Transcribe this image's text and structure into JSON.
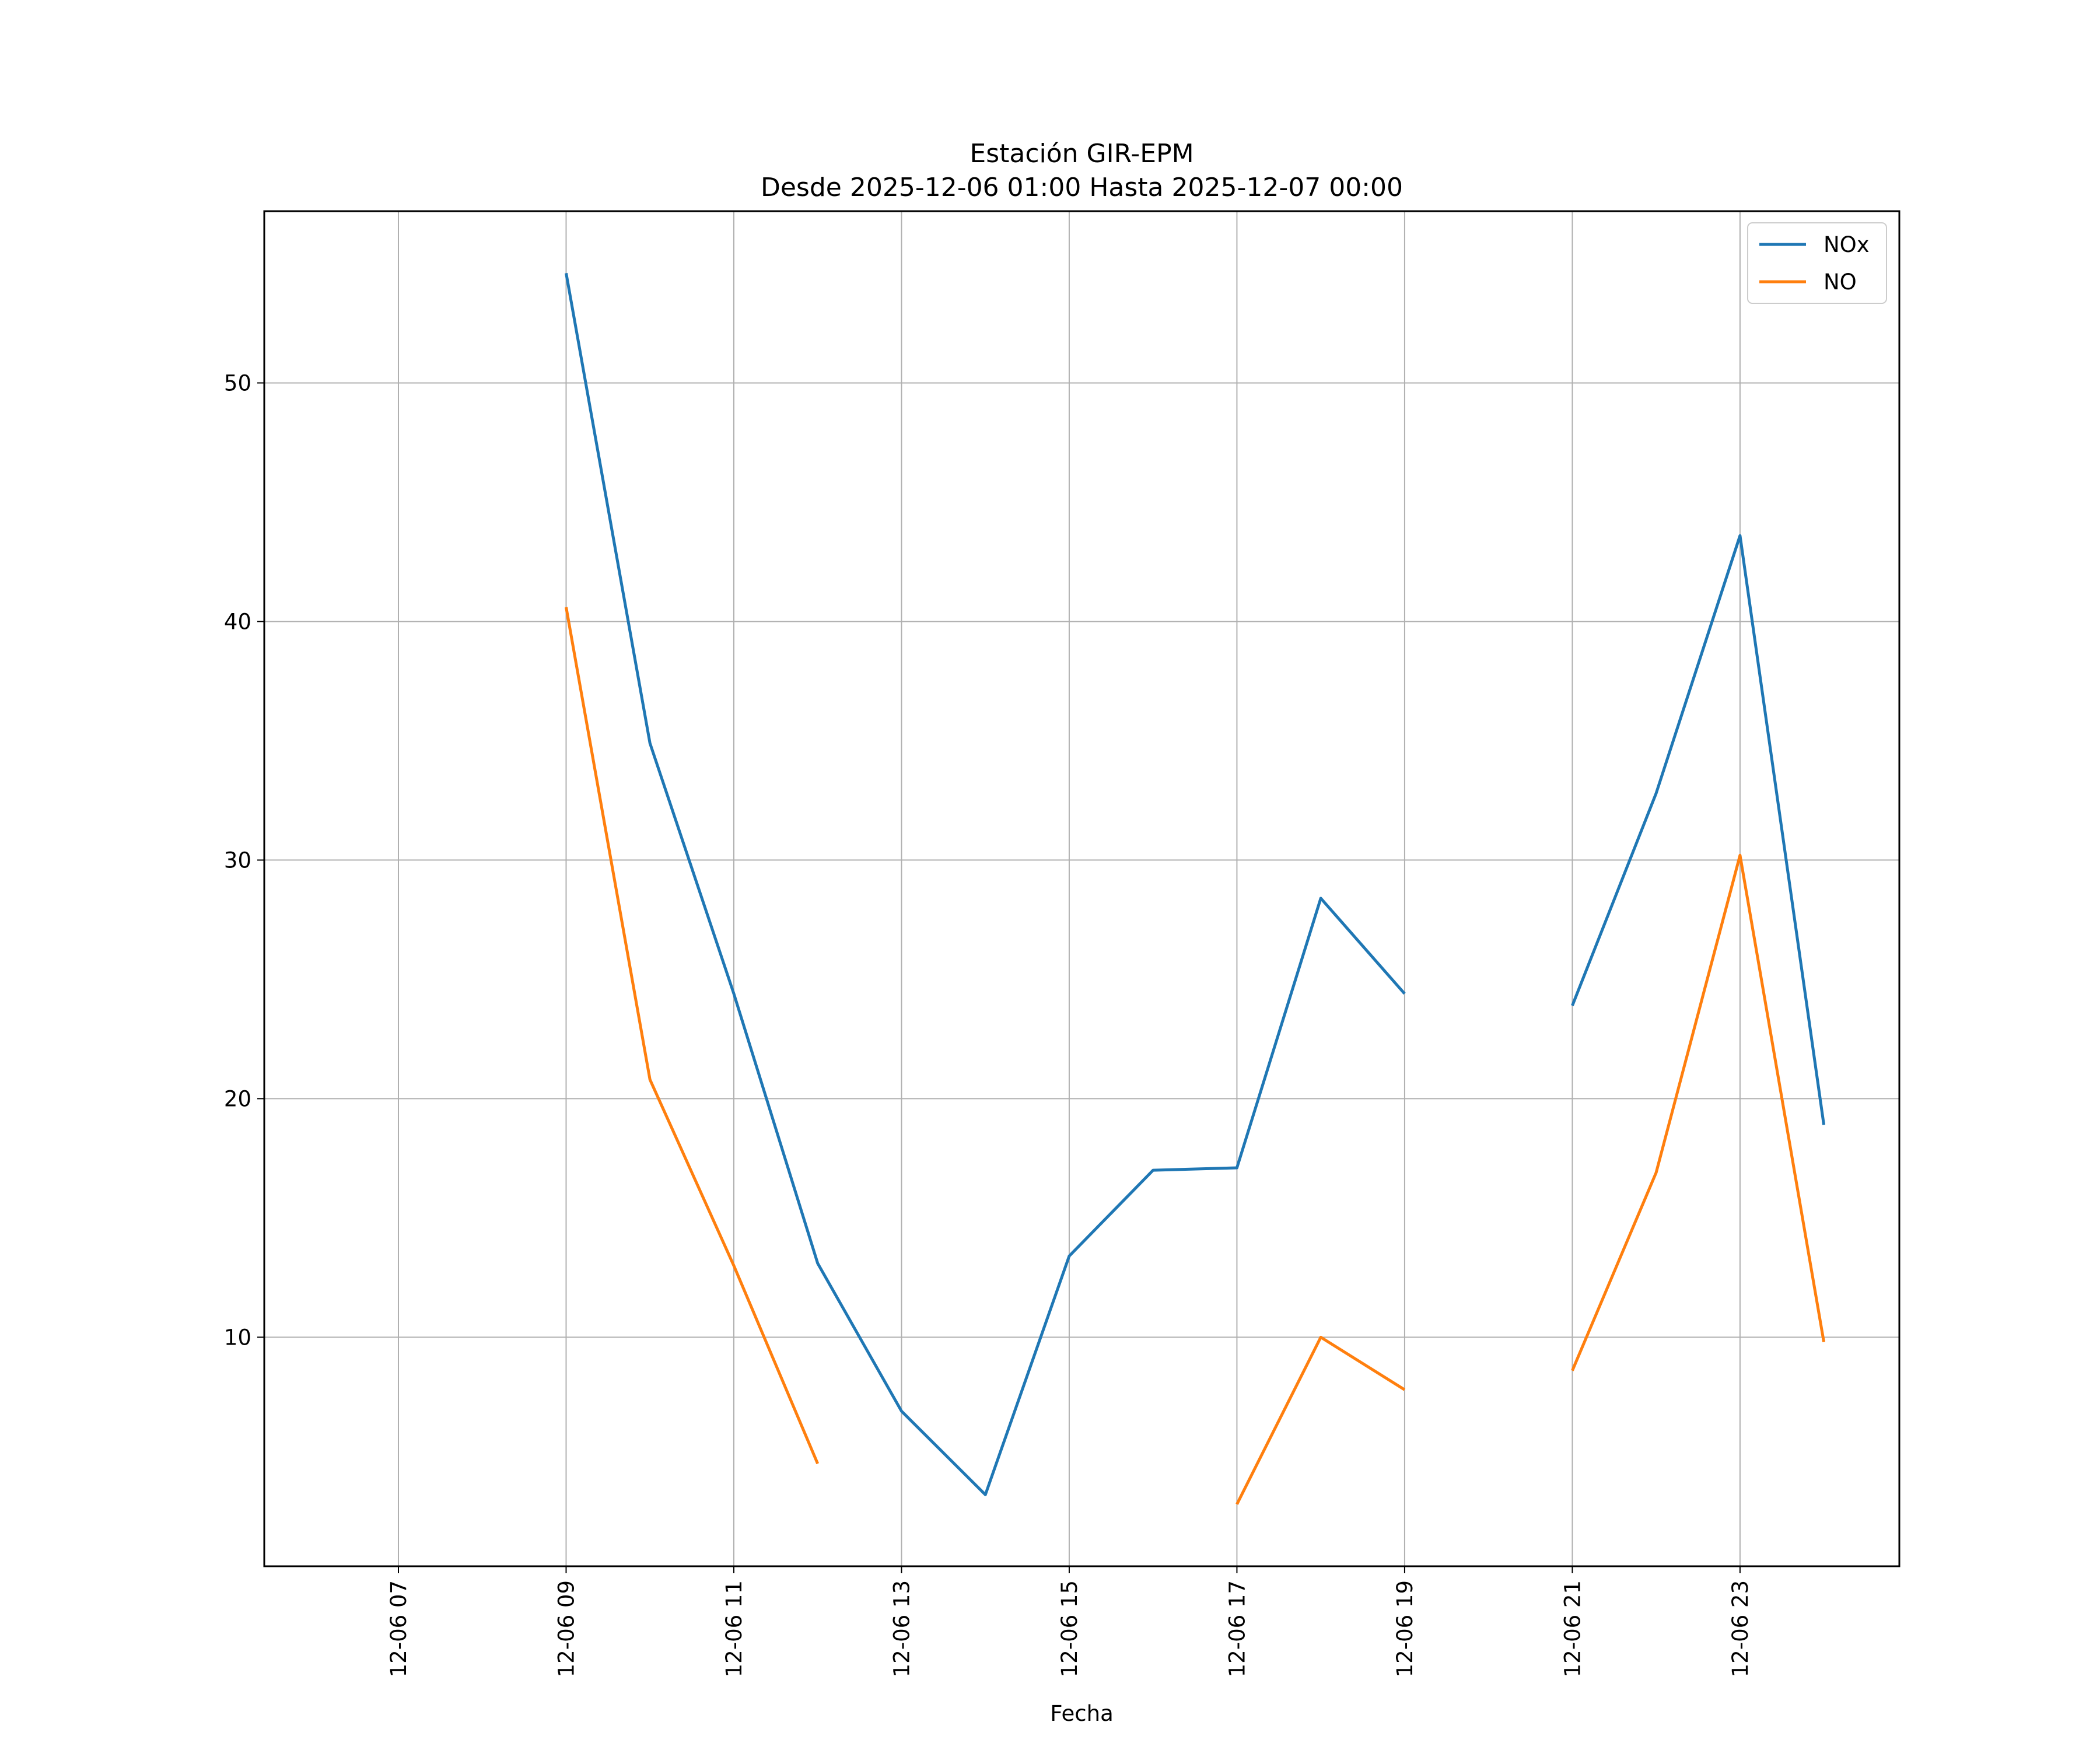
{
  "chart_data": {
    "type": "line",
    "title": "Estación GIR-EPM",
    "subtitle": "Desde 2025-12-06 01:00 Hasta 2025-12-07 00:00",
    "xlabel": "Fecha",
    "ylabel": "",
    "x": [
      "12-06 09",
      "12-06 10",
      "12-06 11",
      "12-06 12",
      "12-06 13",
      "12-06 14",
      "12-06 15",
      "12-06 16",
      "12-06 17",
      "12-06 18",
      "12-06 19",
      "12-06 20",
      "12-06 21",
      "12-06 22",
      "12-06 23",
      "12-07 00"
    ],
    "xticks": [
      "12-06 07",
      "12-06 09",
      "12-06 11",
      "12-06 13",
      "12-06 15",
      "12-06 17",
      "12-06 19",
      "12-06 21",
      "12-06 23"
    ],
    "xlim": [
      "12-06 05:24",
      "12-07 00:54"
    ],
    "yticks": [
      10,
      20,
      30,
      40,
      50
    ],
    "ylim": [
      0.4,
      57.2
    ],
    "grid": true,
    "legend_position": "top-right",
    "series": [
      {
        "name": "NOx",
        "color": "#1f77b4",
        "values": [
          54.6,
          34.9,
          24.4,
          13.1,
          6.9,
          3.4,
          13.4,
          17.0,
          17.1,
          28.4,
          24.4,
          null,
          23.9,
          32.8,
          43.6,
          18.9
        ]
      },
      {
        "name": "NO",
        "color": "#ff7f0e",
        "values": [
          40.6,
          20.8,
          13.0,
          4.7,
          null,
          null,
          null,
          null,
          3.0,
          10.0,
          7.8,
          null,
          8.6,
          16.9,
          30.2,
          9.8
        ]
      }
    ]
  }
}
